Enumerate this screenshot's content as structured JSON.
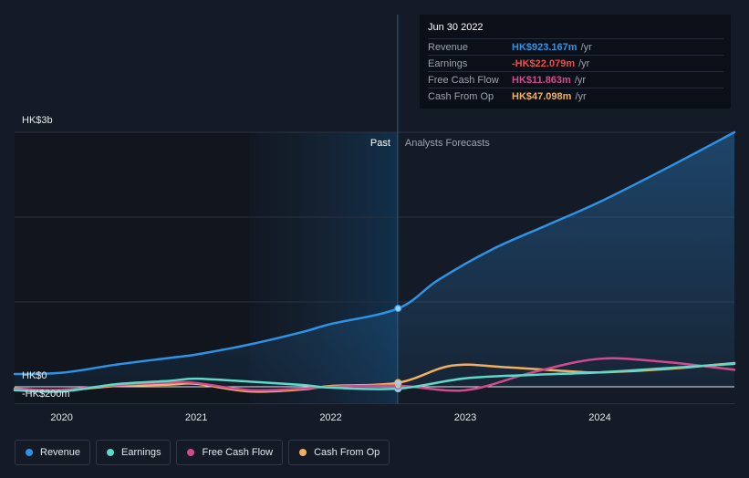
{
  "tooltip": {
    "date": "Jun 30 2022",
    "rows": [
      {
        "label": "Revenue",
        "value": "HK$923.167m",
        "unit": "/yr",
        "color": "#2e93e6"
      },
      {
        "label": "Earnings",
        "value": "-HK$22.079m",
        "unit": "/yr",
        "color": "#ef4b4b"
      },
      {
        "label": "Free Cash Flow",
        "value": "HK$11.863m",
        "unit": "/yr",
        "color": "#d04b8e"
      },
      {
        "label": "Cash From Op",
        "value": "HK$47.098m",
        "unit": "/yr",
        "color": "#f0b060"
      }
    ]
  },
  "legend": [
    {
      "label": "Revenue",
      "color": "#2e93e6"
    },
    {
      "label": "Earnings",
      "color": "#5ed8c8"
    },
    {
      "label": "Free Cash Flow",
      "color": "#d04b8e"
    },
    {
      "label": "Cash From Op",
      "color": "#f0b060"
    }
  ],
  "chart_data": {
    "type": "line",
    "x_ticks": [
      "2020",
      "2021",
      "2022",
      "2023",
      "2024"
    ],
    "y_tick_labels": [
      "HK$3b",
      "HK$0",
      "-HK$200m"
    ],
    "ylim": [
      -200,
      3000
    ],
    "y_unit": "HK$m",
    "past_label": "Past",
    "forecast_label": "Analysts Forecasts",
    "divider_date": "2022-06-30",
    "series": [
      {
        "name": "Revenue",
        "color": "#2e93e6",
        "points": [
          [
            "2019.65",
            150
          ],
          [
            "2020.0",
            165
          ],
          [
            "2020.4",
            260
          ],
          [
            "2020.8",
            340
          ],
          [
            "2021.0",
            380
          ],
          [
            "2021.4",
            500
          ],
          [
            "2021.8",
            650
          ],
          [
            "2022.0",
            740
          ],
          [
            "2022.5",
            923
          ],
          [
            "2022.8",
            1260
          ],
          [
            "2023.2",
            1620
          ],
          [
            "2023.6",
            1900
          ],
          [
            "2024.0",
            2180
          ],
          [
            "2024.5",
            2580
          ],
          [
            "2025.0",
            3000
          ]
        ]
      },
      {
        "name": "Earnings",
        "color": "#5ed8c8",
        "points": [
          [
            "2019.65",
            -40
          ],
          [
            "2020.0",
            -55
          ],
          [
            "2020.4",
            30
          ],
          [
            "2020.8",
            70
          ],
          [
            "2021.0",
            95
          ],
          [
            "2021.4",
            60
          ],
          [
            "2021.8",
            20
          ],
          [
            "2022.0",
            -10
          ],
          [
            "2022.5",
            -22
          ],
          [
            "2023.0",
            100
          ],
          [
            "2023.5",
            140
          ],
          [
            "2024.0",
            170
          ],
          [
            "2024.5",
            220
          ],
          [
            "2025.0",
            270
          ]
        ]
      },
      {
        "name": "Free Cash Flow",
        "color": "#d04b8e",
        "points": [
          [
            "2019.65",
            -30
          ],
          [
            "2020.0",
            -35
          ],
          [
            "2020.4",
            20
          ],
          [
            "2020.8",
            50
          ],
          [
            "2021.0",
            45
          ],
          [
            "2021.4",
            -40
          ],
          [
            "2021.8",
            -20
          ],
          [
            "2022.0",
            0
          ],
          [
            "2022.5",
            12
          ],
          [
            "2023.0",
            -40
          ],
          [
            "2023.5",
            170
          ],
          [
            "2024.0",
            330
          ],
          [
            "2024.5",
            290
          ],
          [
            "2025.0",
            200
          ]
        ]
      },
      {
        "name": "Cash From Op",
        "color": "#f0b060",
        "points": [
          [
            "2019.65",
            -20
          ],
          [
            "2020.0",
            -45
          ],
          [
            "2020.4",
            10
          ],
          [
            "2020.8",
            25
          ],
          [
            "2021.0",
            35
          ],
          [
            "2021.4",
            -55
          ],
          [
            "2021.8",
            -30
          ],
          [
            "2022.0",
            10
          ],
          [
            "2022.5",
            47
          ],
          [
            "2022.9",
            250
          ],
          [
            "2023.3",
            230
          ],
          [
            "2023.8",
            180
          ],
          [
            "2024.0",
            170
          ],
          [
            "2024.5",
            210
          ],
          [
            "2025.0",
            280
          ]
        ]
      }
    ]
  }
}
